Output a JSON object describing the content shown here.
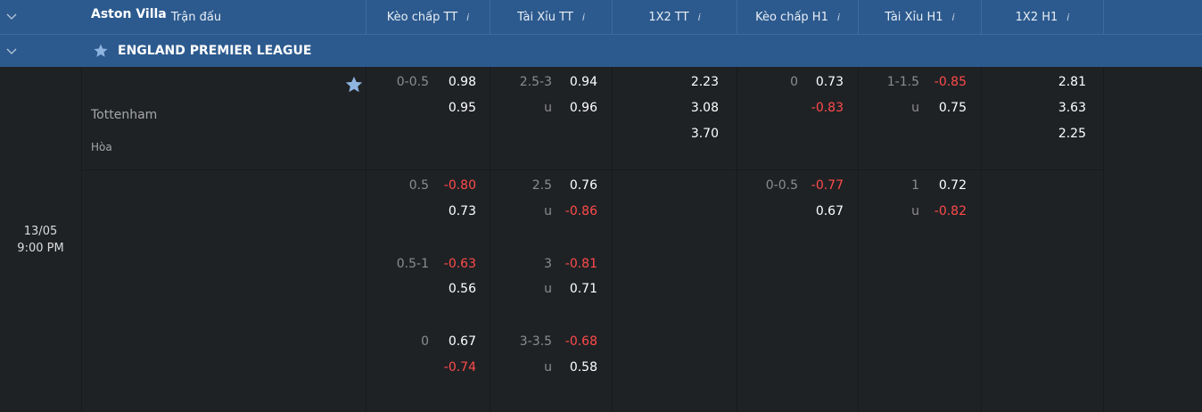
{
  "header": {
    "columns": [
      {
        "label": "Trận đấu",
        "info": ""
      },
      {
        "label": "Kèo chấp TT",
        "info": "i"
      },
      {
        "label": "Tài Xỉu TT",
        "info": "i"
      },
      {
        "label": "1X2 TT",
        "info": "i"
      },
      {
        "label": "Kèo chấp H1",
        "info": "i"
      },
      {
        "label": "Tài Xỉu H1",
        "info": "i"
      },
      {
        "label": "1X2 H1",
        "info": "i"
      }
    ]
  },
  "league": {
    "name": "ENGLAND PREMIER LEAGUE",
    "icon": "star-icon"
  },
  "match": {
    "date": "13/05",
    "time": "9:00 PM",
    "home": "Aston Villa",
    "away": "Tottenham",
    "draw": "Hòa",
    "rows": [
      {
        "hdp_ft": {
          "line": "0-0.5",
          "home": "0.98",
          "away": "0.95"
        },
        "ou_ft": {
          "line": "2.5-3",
          "over": "0.94",
          "under_label": "u",
          "under": "0.96"
        },
        "x12_ft": {
          "home": "2.23",
          "away": "3.08",
          "draw": "3.70"
        },
        "hdp_h1": {
          "line": "0",
          "home": "0.73",
          "away": "-0.83"
        },
        "ou_h1": {
          "line": "1-1.5",
          "over": "-0.85",
          "under_label": "u",
          "under": "0.75"
        },
        "x12_h1": {
          "home": "2.81",
          "away": "3.63",
          "draw": "2.25"
        }
      },
      {
        "hdp_ft": {
          "line": "0.5",
          "home": "-0.80",
          "away": "0.73"
        },
        "ou_ft": {
          "line": "2.5",
          "over": "0.76",
          "under_label": "u",
          "under": "-0.86"
        },
        "hdp_h1": {
          "line": "0-0.5",
          "home": "-0.77",
          "away": "0.67"
        },
        "ou_h1": {
          "line": "1",
          "over": "0.72",
          "under_label": "u",
          "under": "-0.82"
        }
      },
      {
        "hdp_ft": {
          "line": "0.5-1",
          "home": "-0.63",
          "away": "0.56"
        },
        "ou_ft": {
          "line": "3",
          "over": "-0.81",
          "under_label": "u",
          "under": "0.71"
        }
      },
      {
        "hdp_ft": {
          "line": "0",
          "home": "0.67",
          "away": "-0.74"
        },
        "ou_ft": {
          "line": "3-3.5",
          "over": "-0.68",
          "under_label": "u",
          "under": "0.58"
        }
      }
    ]
  },
  "colors": {
    "header_bg": "#2c5a8e",
    "body_bg": "#1f2225",
    "negative": "#ff4a4a",
    "label": "#8c8c8c",
    "star": "#8fb4e0"
  }
}
